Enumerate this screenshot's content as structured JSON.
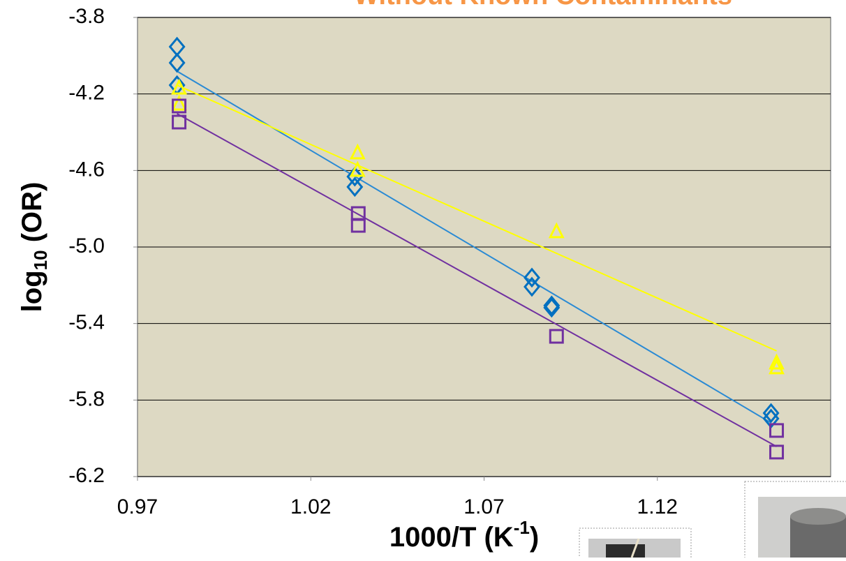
{
  "chart_data": {
    "type": "scatter",
    "title": "Without Known Contaminants",
    "x_label": {
      "main": "1000/T (K",
      "sup": "-1",
      "end": ")"
    },
    "y_label": {
      "main": "log",
      "sub": "10",
      "end": " (OR)"
    },
    "xlim": [
      0.97,
      1.17
    ],
    "xticks": [
      0.97,
      1.02,
      1.07,
      1.12
    ],
    "ylim": [
      -6.2,
      -3.8
    ],
    "yticks": [
      -3.8,
      -4.2,
      -4.6,
      {
        "value": -5,
        "label": "-5.0"
      },
      -5.4,
      -5.8,
      -6.2
    ],
    "grid": true,
    "series": [
      {
        "color": "#0070c0",
        "marker": "diamond",
        "x": [
          0.9814,
          0.9814,
          0.9814,
          1.0327,
          1.0327,
          1.0838,
          1.0838,
          1.0895,
          1.0895,
          1.1528,
          1.1528
        ],
        "y": [
          -3.953,
          -4.037,
          -4.154,
          -4.632,
          -4.686,
          -5.16,
          -5.208,
          -5.306,
          -5.317,
          -5.868,
          -5.897
        ],
        "trendline": {
          "color": "#2a8ad4",
          "x": [
            0.9814,
            1.1528
          ],
          "y": [
            -4.081,
            -5.919
          ]
        }
      },
      {
        "color": "#ffff00",
        "marker": "triangle",
        "x": [
          0.982,
          0.982,
          1.0335,
          1.0335,
          1.0909,
          1.1544,
          1.1544
        ],
        "y": [
          -4.172,
          -4.256,
          -4.511,
          -4.602,
          -4.923,
          -5.609,
          -5.634
        ],
        "trendline": {
          "color": "#ffff00",
          "x": [
            0.9814,
            1.1544
          ],
          "y": [
            -4.154,
            -5.543
          ]
        }
      },
      {
        "color": "#7030a0",
        "marker": "square",
        "x": [
          0.982,
          0.982,
          1.0337,
          1.0337,
          1.0909,
          1.1544,
          1.1544
        ],
        "y": [
          -4.263,
          -4.347,
          -4.825,
          -4.887,
          -5.467,
          -5.959,
          -6.072
        ],
        "trendline": {
          "color": "#7030a0",
          "x": [
            0.9814,
            1.1544
          ],
          "y": [
            -4.303,
            -6.043
          ]
        }
      }
    ]
  }
}
